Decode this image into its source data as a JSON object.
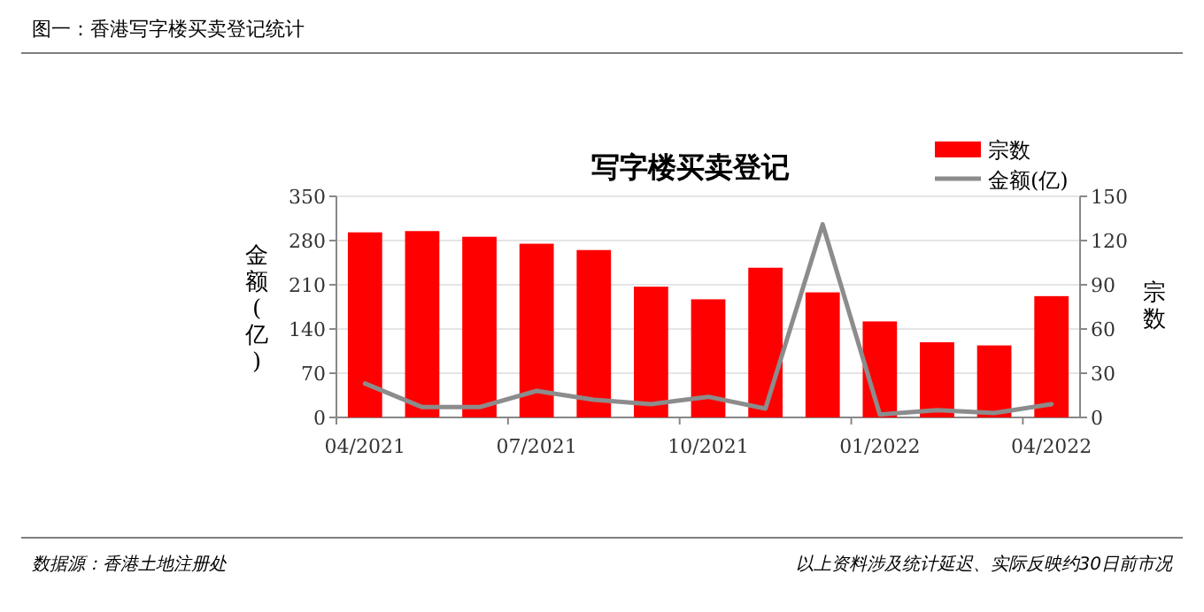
{
  "chart_data": {
    "type": "bar",
    "title": "图一：香港写字楼买卖登记统计",
    "subtitle": "写字楼买卖登记",
    "ylabel": "金额(亿)",
    "y2label": "宗数",
    "categories": [
      "04/2021",
      null,
      null,
      "07/2021",
      null,
      null,
      "10/2021",
      null,
      null,
      "01/2022",
      null,
      null,
      "04/2022"
    ],
    "series": [
      {
        "name": "宗数",
        "color": "#ff0000",
        "values": [
          293,
          295,
          286,
          275,
          265,
          207,
          187,
          237,
          198,
          152,
          119,
          114,
          192
        ]
      },
      {
        "name": "金额(亿)",
        "type": "line",
        "axis": "y2",
        "color": "#8c8c8c",
        "values": [
          23,
          7,
          7,
          18,
          12,
          9,
          14,
          6,
          131,
          2,
          5,
          3,
          9
        ]
      }
    ],
    "ylim": [
      0,
      350
    ],
    "yticks": [
      0,
      70,
      140,
      210,
      280,
      350
    ],
    "y2lim": [
      0,
      150
    ],
    "y2ticks": [
      0,
      30,
      60,
      90,
      120,
      150
    ],
    "grid": "y",
    "legend": "top right",
    "annotations": [
      "数据源：香港土地注册处",
      "以上资料涉及统计延迟、实际反映约30日前市况"
    ]
  }
}
